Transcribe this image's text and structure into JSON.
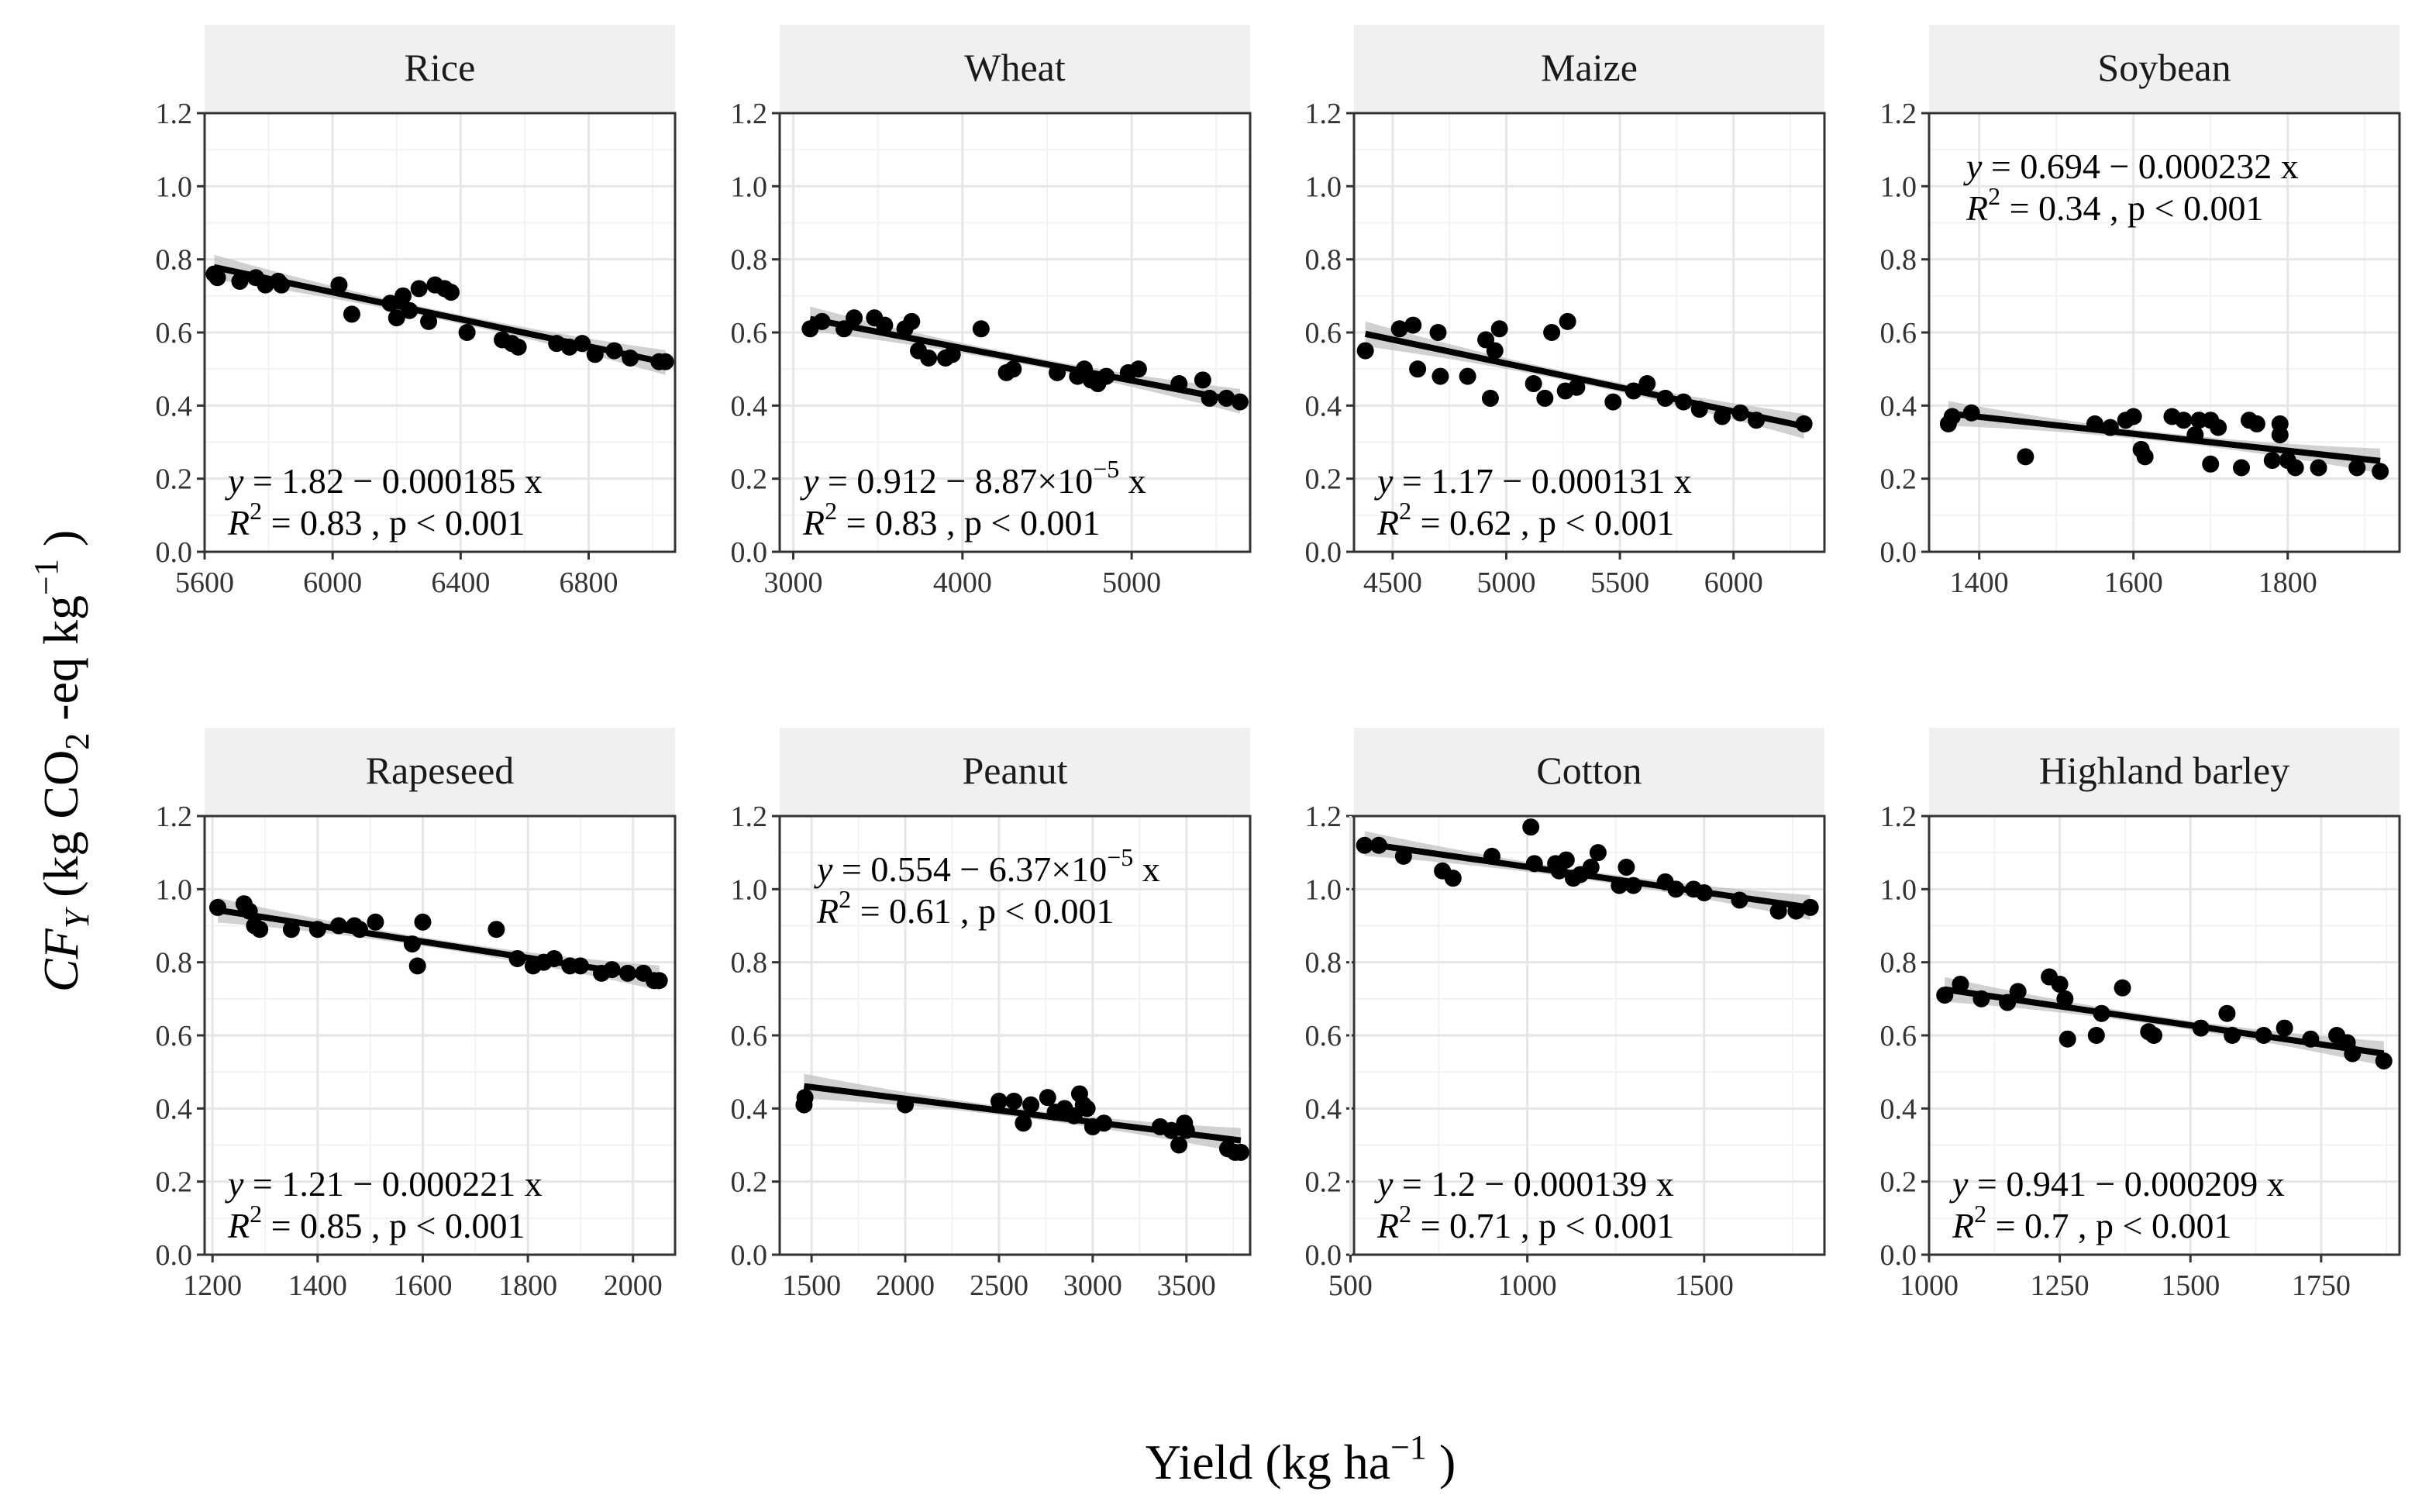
{
  "figure": {
    "xlabel": {
      "prefix": "Yield (kg ha",
      "sup": "−1",
      "suffix": " )"
    },
    "ylabel": {
      "cf": "CF",
      "sub": "Y",
      "mid": "  (kg CO",
      "sub2": "2",
      "mid2": " -eq kg",
      "sup": "−1",
      "suffix": " )"
    }
  },
  "chart_data": [
    {
      "type": "scatter",
      "title": "Rice",
      "xlim": [
        5600,
        7070
      ],
      "ylim": [
        0,
        1.2
      ],
      "xticks": [
        5600,
        6000,
        6400,
        6800
      ],
      "yticks": [
        0.0,
        0.2,
        0.4,
        0.6,
        0.8,
        1.0,
        1.2
      ],
      "fit": {
        "intercept": 1.82,
        "slope": -0.000185
      },
      "equation": {
        "eq": "y = 1.82 − 0.000185 x",
        "r2": "= 0.83 , p < 0.001"
      },
      "eq_position": "bottom-left",
      "points": [
        [
          5630,
          0.76
        ],
        [
          5640,
          0.75
        ],
        [
          5710,
          0.74
        ],
        [
          5760,
          0.75
        ],
        [
          5790,
          0.73
        ],
        [
          5830,
          0.74
        ],
        [
          5840,
          0.73
        ],
        [
          6020,
          0.73
        ],
        [
          6060,
          0.65
        ],
        [
          6180,
          0.68
        ],
        [
          6200,
          0.64
        ],
        [
          6220,
          0.7
        ],
        [
          6240,
          0.66
        ],
        [
          6270,
          0.72
        ],
        [
          6300,
          0.63
        ],
        [
          6320,
          0.73
        ],
        [
          6350,
          0.72
        ],
        [
          6370,
          0.71
        ],
        [
          6420,
          0.6
        ],
        [
          6530,
          0.58
        ],
        [
          6560,
          0.57
        ],
        [
          6580,
          0.56
        ],
        [
          6700,
          0.57
        ],
        [
          6740,
          0.56
        ],
        [
          6780,
          0.57
        ],
        [
          6820,
          0.54
        ],
        [
          6880,
          0.55
        ],
        [
          6930,
          0.53
        ],
        [
          7020,
          0.52
        ],
        [
          7040,
          0.52
        ]
      ]
    },
    {
      "type": "scatter",
      "title": "Wheat",
      "xlim": [
        2920,
        5700
      ],
      "ylim": [
        0,
        1.2
      ],
      "xticks": [
        3000,
        4000,
        5000
      ],
      "yticks": [
        0.0,
        0.2,
        0.4,
        0.6,
        0.8,
        1.0,
        1.2
      ],
      "fit": {
        "intercept": 0.912,
        "slope": -8.87e-05
      },
      "equation": {
        "eq": "y = 0.912 − 8.87×10",
        "eq_sup": "−5",
        "eq_tail": " x",
        "r2": "= 0.83 , p < 0.001"
      },
      "eq_position": "bottom-left",
      "points": [
        [
          3100,
          0.61
        ],
        [
          3170,
          0.63
        ],
        [
          3300,
          0.61
        ],
        [
          3360,
          0.64
        ],
        [
          3480,
          0.64
        ],
        [
          3540,
          0.62
        ],
        [
          3660,
          0.61
        ],
        [
          3700,
          0.63
        ],
        [
          3740,
          0.55
        ],
        [
          3800,
          0.53
        ],
        [
          3900,
          0.53
        ],
        [
          3940,
          0.54
        ],
        [
          4110,
          0.61
        ],
        [
          4260,
          0.49
        ],
        [
          4300,
          0.5
        ],
        [
          4560,
          0.49
        ],
        [
          4680,
          0.48
        ],
        [
          4720,
          0.5
        ],
        [
          4760,
          0.47
        ],
        [
          4800,
          0.46
        ],
        [
          4850,
          0.48
        ],
        [
          4980,
          0.49
        ],
        [
          5040,
          0.5
        ],
        [
          5280,
          0.46
        ],
        [
          5420,
          0.47
        ],
        [
          5460,
          0.42
        ],
        [
          5560,
          0.42
        ],
        [
          5640,
          0.41
        ]
      ]
    },
    {
      "type": "scatter",
      "title": "Maize",
      "xlim": [
        4330,
        6400
      ],
      "ylim": [
        0,
        1.2
      ],
      "xticks": [
        4500,
        5000,
        5500,
        6000
      ],
      "yticks": [
        0.0,
        0.2,
        0.4,
        0.6,
        0.8,
        1.0,
        1.2
      ],
      "fit": {
        "intercept": 1.17,
        "slope": -0.000131
      },
      "equation": {
        "eq": "y = 1.17 − 0.000131 x",
        "r2": "= 0.62 , p < 0.001"
      },
      "eq_position": "bottom-left",
      "points": [
        [
          4380,
          0.55
        ],
        [
          4530,
          0.61
        ],
        [
          4590,
          0.62
        ],
        [
          4610,
          0.5
        ],
        [
          4700,
          0.6
        ],
        [
          4710,
          0.48
        ],
        [
          4830,
          0.48
        ],
        [
          4910,
          0.58
        ],
        [
          4930,
          0.42
        ],
        [
          4950,
          0.55
        ],
        [
          4970,
          0.61
        ],
        [
          5120,
          0.46
        ],
        [
          5170,
          0.42
        ],
        [
          5200,
          0.6
        ],
        [
          5260,
          0.44
        ],
        [
          5270,
          0.63
        ],
        [
          5310,
          0.45
        ],
        [
          5470,
          0.41
        ],
        [
          5560,
          0.44
        ],
        [
          5620,
          0.46
        ],
        [
          5700,
          0.42
        ],
        [
          5780,
          0.41
        ],
        [
          5850,
          0.39
        ],
        [
          5950,
          0.37
        ],
        [
          6030,
          0.38
        ],
        [
          6100,
          0.36
        ],
        [
          6310,
          0.35
        ]
      ]
    },
    {
      "type": "scatter",
      "title": "Soybean",
      "xlim": [
        1335,
        1945
      ],
      "ylim": [
        0,
        1.2
      ],
      "xticks": [
        1400,
        1600,
        1800
      ],
      "yticks": [
        0.0,
        0.2,
        0.4,
        0.6,
        0.8,
        1.0,
        1.2
      ],
      "fit": {
        "intercept": 0.694,
        "slope": -0.000232
      },
      "equation": {
        "eq": "y = 0.694 − 0.000232 x",
        "r2": "= 0.34 , p < 0.001"
      },
      "eq_position": "top",
      "points": [
        [
          1360,
          0.35
        ],
        [
          1365,
          0.37
        ],
        [
          1390,
          0.38
        ],
        [
          1460,
          0.26
        ],
        [
          1550,
          0.35
        ],
        [
          1570,
          0.34
        ],
        [
          1590,
          0.36
        ],
        [
          1600,
          0.37
        ],
        [
          1610,
          0.28
        ],
        [
          1615,
          0.26
        ],
        [
          1650,
          0.37
        ],
        [
          1665,
          0.36
        ],
        [
          1680,
          0.32
        ],
        [
          1685,
          0.36
        ],
        [
          1700,
          0.24
        ],
        [
          1700,
          0.36
        ],
        [
          1710,
          0.34
        ],
        [
          1740,
          0.23
        ],
        [
          1750,
          0.36
        ],
        [
          1760,
          0.35
        ],
        [
          1780,
          0.25
        ],
        [
          1790,
          0.35
        ],
        [
          1790,
          0.32
        ],
        [
          1800,
          0.25
        ],
        [
          1810,
          0.23
        ],
        [
          1840,
          0.23
        ],
        [
          1890,
          0.23
        ],
        [
          1920,
          0.22
        ]
      ]
    },
    {
      "type": "scatter",
      "title": "Rapeseed",
      "xlim": [
        1185,
        2080
      ],
      "ylim": [
        0,
        1.2
      ],
      "xticks": [
        1200,
        1400,
        1600,
        1800,
        2000
      ],
      "yticks": [
        0.0,
        0.2,
        0.4,
        0.6,
        0.8,
        1.0,
        1.2
      ],
      "fit": {
        "intercept": 1.21,
        "slope": -0.000221
      },
      "equation": {
        "eq": "y = 1.21 − 0.000221 x",
        "r2": "= 0.85 , p < 0.001"
      },
      "eq_position": "bottom-left",
      "points": [
        [
          1210,
          0.95
        ],
        [
          1260,
          0.96
        ],
        [
          1270,
          0.94
        ],
        [
          1280,
          0.9
        ],
        [
          1290,
          0.89
        ],
        [
          1350,
          0.89
        ],
        [
          1400,
          0.89
        ],
        [
          1440,
          0.9
        ],
        [
          1470,
          0.9
        ],
        [
          1480,
          0.89
        ],
        [
          1510,
          0.91
        ],
        [
          1580,
          0.85
        ],
        [
          1590,
          0.79
        ],
        [
          1600,
          0.91
        ],
        [
          1740,
          0.89
        ],
        [
          1780,
          0.81
        ],
        [
          1810,
          0.79
        ],
        [
          1830,
          0.8
        ],
        [
          1850,
          0.81
        ],
        [
          1880,
          0.79
        ],
        [
          1900,
          0.79
        ],
        [
          1940,
          0.77
        ],
        [
          1960,
          0.78
        ],
        [
          1990,
          0.77
        ],
        [
          2020,
          0.77
        ],
        [
          2040,
          0.75
        ],
        [
          2050,
          0.75
        ]
      ]
    },
    {
      "type": "scatter",
      "title": "Peanut",
      "xlim": [
        1330,
        3840
      ],
      "ylim": [
        0,
        1.2
      ],
      "xticks": [
        1500,
        2000,
        2500,
        3000,
        3500
      ],
      "yticks": [
        0.0,
        0.2,
        0.4,
        0.6,
        0.8,
        1.0,
        1.2
      ],
      "fit": {
        "intercept": 0.554,
        "slope": -6.37e-05
      },
      "equation": {
        "eq": "y = 0.554 − 6.37×10",
        "eq_sup": "−5",
        "eq_tail": " x",
        "r2": "= 0.61 , p < 0.001"
      },
      "eq_position": "top",
      "points": [
        [
          1460,
          0.41
        ],
        [
          1465,
          0.43
        ],
        [
          2000,
          0.41
        ],
        [
          2500,
          0.42
        ],
        [
          2580,
          0.42
        ],
        [
          2630,
          0.36
        ],
        [
          2670,
          0.41
        ],
        [
          2760,
          0.43
        ],
        [
          2800,
          0.39
        ],
        [
          2850,
          0.4
        ],
        [
          2900,
          0.38
        ],
        [
          2930,
          0.44
        ],
        [
          2950,
          0.41
        ],
        [
          2970,
          0.4
        ],
        [
          3000,
          0.35
        ],
        [
          3060,
          0.36
        ],
        [
          3360,
          0.35
        ],
        [
          3420,
          0.34
        ],
        [
          3460,
          0.3
        ],
        [
          3490,
          0.36
        ],
        [
          3500,
          0.34
        ],
        [
          3720,
          0.29
        ],
        [
          3760,
          0.28
        ],
        [
          3790,
          0.28
        ]
      ]
    },
    {
      "type": "scatter",
      "title": "Cotton",
      "xlim": [
        510,
        1840
      ],
      "ylim": [
        0,
        1.2
      ],
      "xticks": [
        500,
        1000,
        1500
      ],
      "yticks": [
        0.0,
        0.2,
        0.4,
        0.6,
        0.8,
        1.0,
        1.2
      ],
      "fit": {
        "intercept": 1.2,
        "slope": -0.000139
      },
      "equation": {
        "eq": "y = 1.2 − 0.000139 x",
        "r2": "= 0.71 , p < 0.001"
      },
      "eq_position": "bottom-left",
      "points": [
        [
          540,
          1.12
        ],
        [
          580,
          1.12
        ],
        [
          650,
          1.09
        ],
        [
          760,
          1.05
        ],
        [
          790,
          1.03
        ],
        [
          900,
          1.09
        ],
        [
          1010,
          1.17
        ],
        [
          1020,
          1.07
        ],
        [
          1080,
          1.07
        ],
        [
          1090,
          1.05
        ],
        [
          1110,
          1.08
        ],
        [
          1130,
          1.03
        ],
        [
          1150,
          1.04
        ],
        [
          1180,
          1.06
        ],
        [
          1200,
          1.1
        ],
        [
          1260,
          1.01
        ],
        [
          1280,
          1.06
        ],
        [
          1300,
          1.01
        ],
        [
          1390,
          1.02
        ],
        [
          1420,
          1.0
        ],
        [
          1470,
          1.0
        ],
        [
          1500,
          0.99
        ],
        [
          1600,
          0.97
        ],
        [
          1710,
          0.94
        ],
        [
          1760,
          0.94
        ],
        [
          1800,
          0.95
        ]
      ]
    },
    {
      "type": "scatter",
      "title": "Highland barley",
      "xlim": [
        1000,
        1900
      ],
      "ylim": [
        0,
        1.2
      ],
      "xticks": [
        1000,
        1250,
        1500,
        1750
      ],
      "yticks": [
        0.0,
        0.2,
        0.4,
        0.6,
        0.8,
        1.0,
        1.2
      ],
      "fit": {
        "intercept": 0.941,
        "slope": -0.000209
      },
      "equation": {
        "eq": "y = 0.941 − 0.000209 x",
        "r2": "= 0.7 , p < 0.001"
      },
      "eq_position": "bottom-left",
      "points": [
        [
          1030,
          0.71
        ],
        [
          1060,
          0.74
        ],
        [
          1100,
          0.7
        ],
        [
          1150,
          0.69
        ],
        [
          1170,
          0.72
        ],
        [
          1230,
          0.76
        ],
        [
          1250,
          0.74
        ],
        [
          1260,
          0.7
        ],
        [
          1265,
          0.59
        ],
        [
          1320,
          0.6
        ],
        [
          1330,
          0.66
        ],
        [
          1370,
          0.73
        ],
        [
          1420,
          0.61
        ],
        [
          1430,
          0.6
        ],
        [
          1520,
          0.62
        ],
        [
          1570,
          0.66
        ],
        [
          1580,
          0.6
        ],
        [
          1640,
          0.6
        ],
        [
          1680,
          0.62
        ],
        [
          1730,
          0.59
        ],
        [
          1780,
          0.6
        ],
        [
          1800,
          0.58
        ],
        [
          1810,
          0.55
        ],
        [
          1870,
          0.53
        ]
      ]
    }
  ]
}
